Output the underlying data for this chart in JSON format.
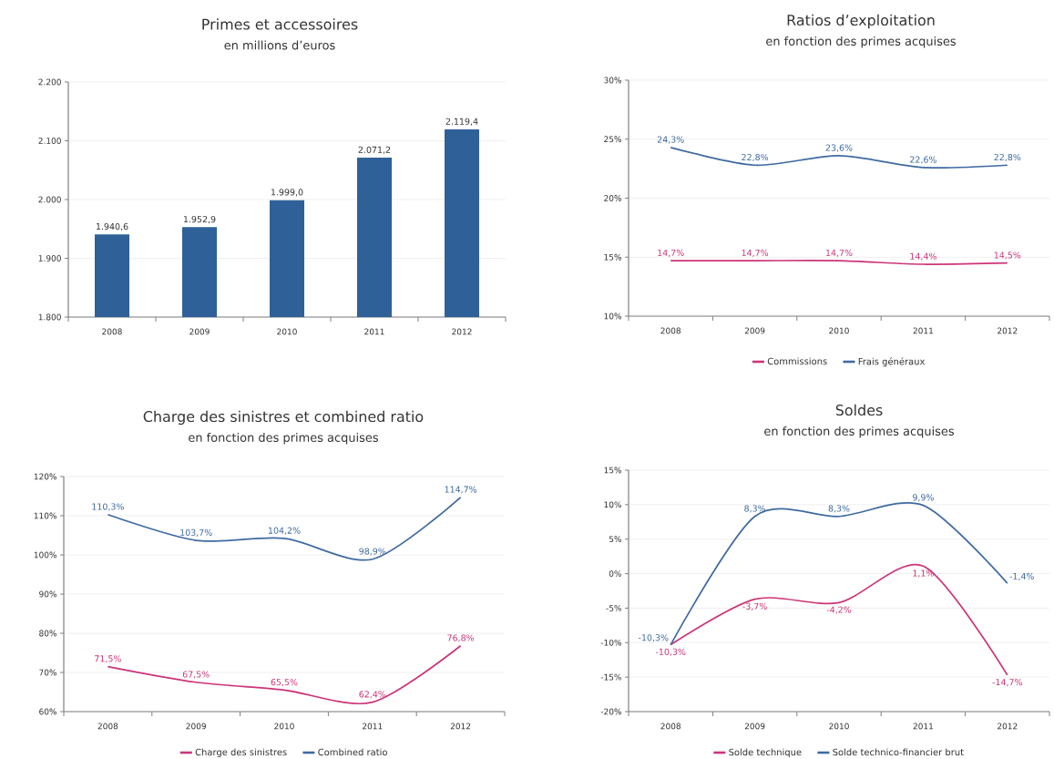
{
  "chart_data": [
    {
      "type": "bar",
      "title": "Primes et accessoires",
      "subtitle": "en millions d’euros",
      "categories": [
        "2008",
        "2009",
        "2010",
        "2011",
        "2012"
      ],
      "values": [
        1940.6,
        1952.9,
        1999.0,
        2071.2,
        2119.4
      ],
      "color": "#2f6198",
      "value_labels": [
        "1.940,6",
        "1.952,9",
        "1.999,0",
        "2.071,2",
        "2.119,4"
      ],
      "ylim": [
        1800,
        2200
      ],
      "yticks": [
        {
          "value": 1800,
          "label": "1.800"
        },
        {
          "value": 1900,
          "label": "1.900"
        },
        {
          "value": 2000,
          "label": "2.000"
        },
        {
          "value": 2100,
          "label": "2.100"
        },
        {
          "value": 2200,
          "label": "2.200"
        }
      ],
      "grid": "y"
    },
    {
      "type": "line",
      "title": "Ratios d’exploitation",
      "subtitle": "en fonction des primes acquises",
      "categories": [
        "2008",
        "2009",
        "2010",
        "2011",
        "2012"
      ],
      "series": [
        {
          "name": "Commissions",
          "color": "#cc3478",
          "values": [
            14.7,
            14.7,
            14.7,
            14.4,
            14.5
          ],
          "value_labels": [
            "14,7%",
            "14,7%",
            "14,7%",
            "14,4%",
            "14,5%"
          ]
        },
        {
          "name": "Frais généraux",
          "color": "#3f6aa1",
          "values": [
            24.3,
            22.8,
            23.6,
            22.6,
            22.8
          ],
          "value_labels": [
            "24,3%",
            "22,8%",
            "23,6%",
            "22,6%",
            "22,8%"
          ]
        }
      ],
      "ylim": [
        10,
        30
      ],
      "yticks": [
        {
          "value": 10,
          "label": "10%"
        },
        {
          "value": 15,
          "label": "15%"
        },
        {
          "value": 20,
          "label": "20%"
        },
        {
          "value": 25,
          "label": "25%"
        },
        {
          "value": 30,
          "label": "30%"
        }
      ],
      "grid": "y",
      "legend": "bottom"
    },
    {
      "type": "line",
      "title": "Charge des sinistres et combined ratio",
      "subtitle": "en fonction des primes acquises",
      "categories": [
        "2008",
        "2009",
        "2010",
        "2011",
        "2012"
      ],
      "series": [
        {
          "name": "Charge des sinistres",
          "color": "#cc3478",
          "values": [
            71.5,
            67.5,
            65.5,
            62.4,
            76.8
          ],
          "value_labels": [
            "71,5%",
            "67,5%",
            "65,5%",
            "62,4%",
            "76,8%"
          ]
        },
        {
          "name": "Combined ratio",
          "color": "#3f6aa1",
          "values": [
            110.3,
            103.7,
            104.2,
            98.9,
            114.7
          ],
          "value_labels": [
            "110,3%",
            "103,7%",
            "104,2%",
            "98,9%",
            "114,7%"
          ]
        }
      ],
      "ylim": [
        60,
        120
      ],
      "yticks": [
        {
          "value": 60,
          "label": "60%"
        },
        {
          "value": 70,
          "label": "70%"
        },
        {
          "value": 80,
          "label": "80%"
        },
        {
          "value": 90,
          "label": "90%"
        },
        {
          "value": 100,
          "label": "100%"
        },
        {
          "value": 110,
          "label": "110%"
        },
        {
          "value": 120,
          "label": "120%"
        }
      ],
      "grid": "y",
      "legend": "bottom"
    },
    {
      "type": "line",
      "title": "Soldes",
      "subtitle": "en fonction des primes acquises",
      "categories": [
        "2008",
        "2009",
        "2010",
        "2011",
        "2012"
      ],
      "series": [
        {
          "name": "Solde technique",
          "color": "#cc3478",
          "values": [
            -10.3,
            -3.7,
            -4.2,
            1.1,
            -14.7
          ],
          "value_labels": [
            "-10,3%",
            "-3,7%",
            "-4,2%",
            "1,1%",
            "-14,7%"
          ]
        },
        {
          "name": "Solde technico-financier brut",
          "color": "#3f6aa1",
          "values": [
            -10.3,
            8.3,
            8.3,
            9.9,
            -1.4
          ],
          "value_labels": [
            "-10,3%",
            "8,3%",
            "8,3%",
            "9,9%",
            "-1,4%"
          ]
        }
      ],
      "ylim": [
        -20,
        15
      ],
      "yticks": [
        {
          "value": -20,
          "label": "-20%"
        },
        {
          "value": -15,
          "label": "-15%"
        },
        {
          "value": -10,
          "label": "-10%"
        },
        {
          "value": -5,
          "label": "-5%"
        },
        {
          "value": 0,
          "label": "0%"
        },
        {
          "value": 5,
          "label": "5%"
        },
        {
          "value": 10,
          "label": "10%"
        },
        {
          "value": 15,
          "label": "15%"
        }
      ],
      "grid": "y",
      "legend": "bottom"
    }
  ]
}
